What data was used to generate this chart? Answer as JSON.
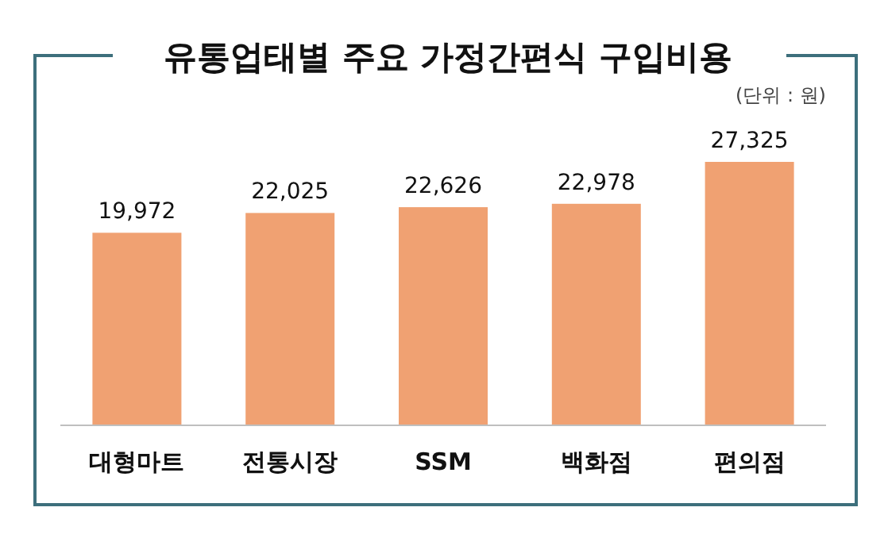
{
  "chart_data": {
    "type": "bar",
    "title": "유통업태별 주요 가정간편식 구입비용",
    "annotations": [
      "(단위 : 원)"
    ],
    "categories": [
      "대형마트",
      "전통시장",
      "SSM",
      "백화점",
      "편의점"
    ],
    "values": [
      19972,
      22025,
      22626,
      22978,
      27325
    ],
    "color": "#f0a172",
    "value_labels": [
      "19,972",
      "22,025",
      "22,626",
      "22,978",
      "27,325"
    ]
  }
}
